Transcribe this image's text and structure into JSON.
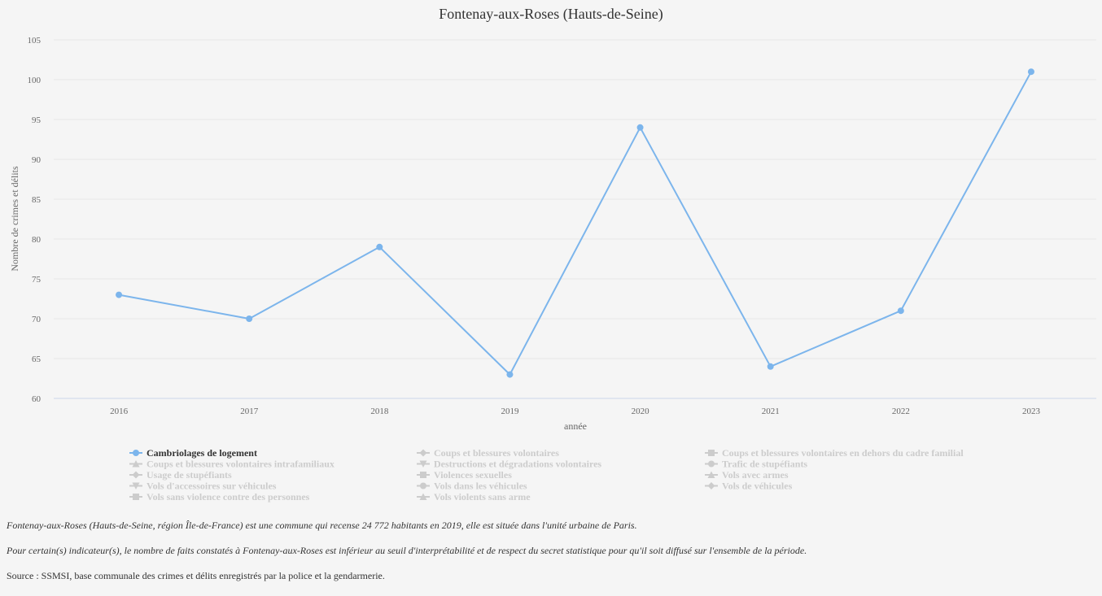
{
  "chart_data": {
    "type": "line",
    "title": "Fontenay-aux-Roses (Hauts-de-Seine)",
    "xlabel": "année",
    "ylabel": "Nombre de crimes et délits",
    "categories": [
      "2016",
      "2017",
      "2018",
      "2019",
      "2020",
      "2021",
      "2022",
      "2023"
    ],
    "ylim": [
      60,
      105
    ],
    "yticks": [
      60,
      65,
      70,
      75,
      80,
      85,
      90,
      95,
      100,
      105
    ],
    "grid": true,
    "series": [
      {
        "name": "Cambriolages de logement",
        "values": [
          73,
          70,
          79,
          63,
          94,
          64,
          71,
          101
        ],
        "color": "#7cb5ec",
        "active": true
      }
    ],
    "legend": {
      "placement": "bottom",
      "entries": [
        {
          "label": "Cambriolages de logement",
          "marker": "circle",
          "active": true
        },
        {
          "label": "Coups et blessures volontaires",
          "marker": "diamond",
          "active": false
        },
        {
          "label": "Coups et blessures volontaires en dehors du cadre familial",
          "marker": "square",
          "active": false
        },
        {
          "label": "Coups et blessures volontaires intrafamiliaux",
          "marker": "triangle",
          "active": false
        },
        {
          "label": "Destructions et dégradations volontaires",
          "marker": "triangle-down",
          "active": false
        },
        {
          "label": "Trafic de stupéfiants",
          "marker": "circle",
          "active": false
        },
        {
          "label": "Usage de stupéfiants",
          "marker": "diamond",
          "active": false
        },
        {
          "label": "Violences sexuelles",
          "marker": "square",
          "active": false
        },
        {
          "label": "Vols avec armes",
          "marker": "triangle",
          "active": false
        },
        {
          "label": "Vols d'accessoires sur véhicules",
          "marker": "triangle-down",
          "active": false
        },
        {
          "label": "Vols dans les véhicules",
          "marker": "circle",
          "active": false
        },
        {
          "label": "Vols de véhicules",
          "marker": "diamond",
          "active": false
        },
        {
          "label": "Vols sans violence contre des personnes",
          "marker": "square",
          "active": false
        },
        {
          "label": "Vols violents sans arme",
          "marker": "triangle",
          "active": false
        }
      ]
    },
    "colors": {
      "series": "#7cb5ec",
      "inactive": "#cccccc",
      "grid": "#e6e6e6",
      "axis": "#ccd6eb"
    }
  },
  "notes": {
    "commune": "Fontenay-aux-Roses (Hauts-de-Seine, région Île-de-France) est une commune qui recense 24 772 habitants en 2019, elle est située dans l'unité urbaine de Paris.",
    "secret": "Pour certain(s) indicateur(s), le nombre de faits constatés à Fontenay-aux-Roses est inférieur au seuil d'interprétabilité et de respect du secret statistique pour qu'il soit diffusé sur l'ensemble de la période.",
    "source": "Source : SSMSI, base communale des crimes et délits enregistrés par la police et la gendarmerie."
  }
}
